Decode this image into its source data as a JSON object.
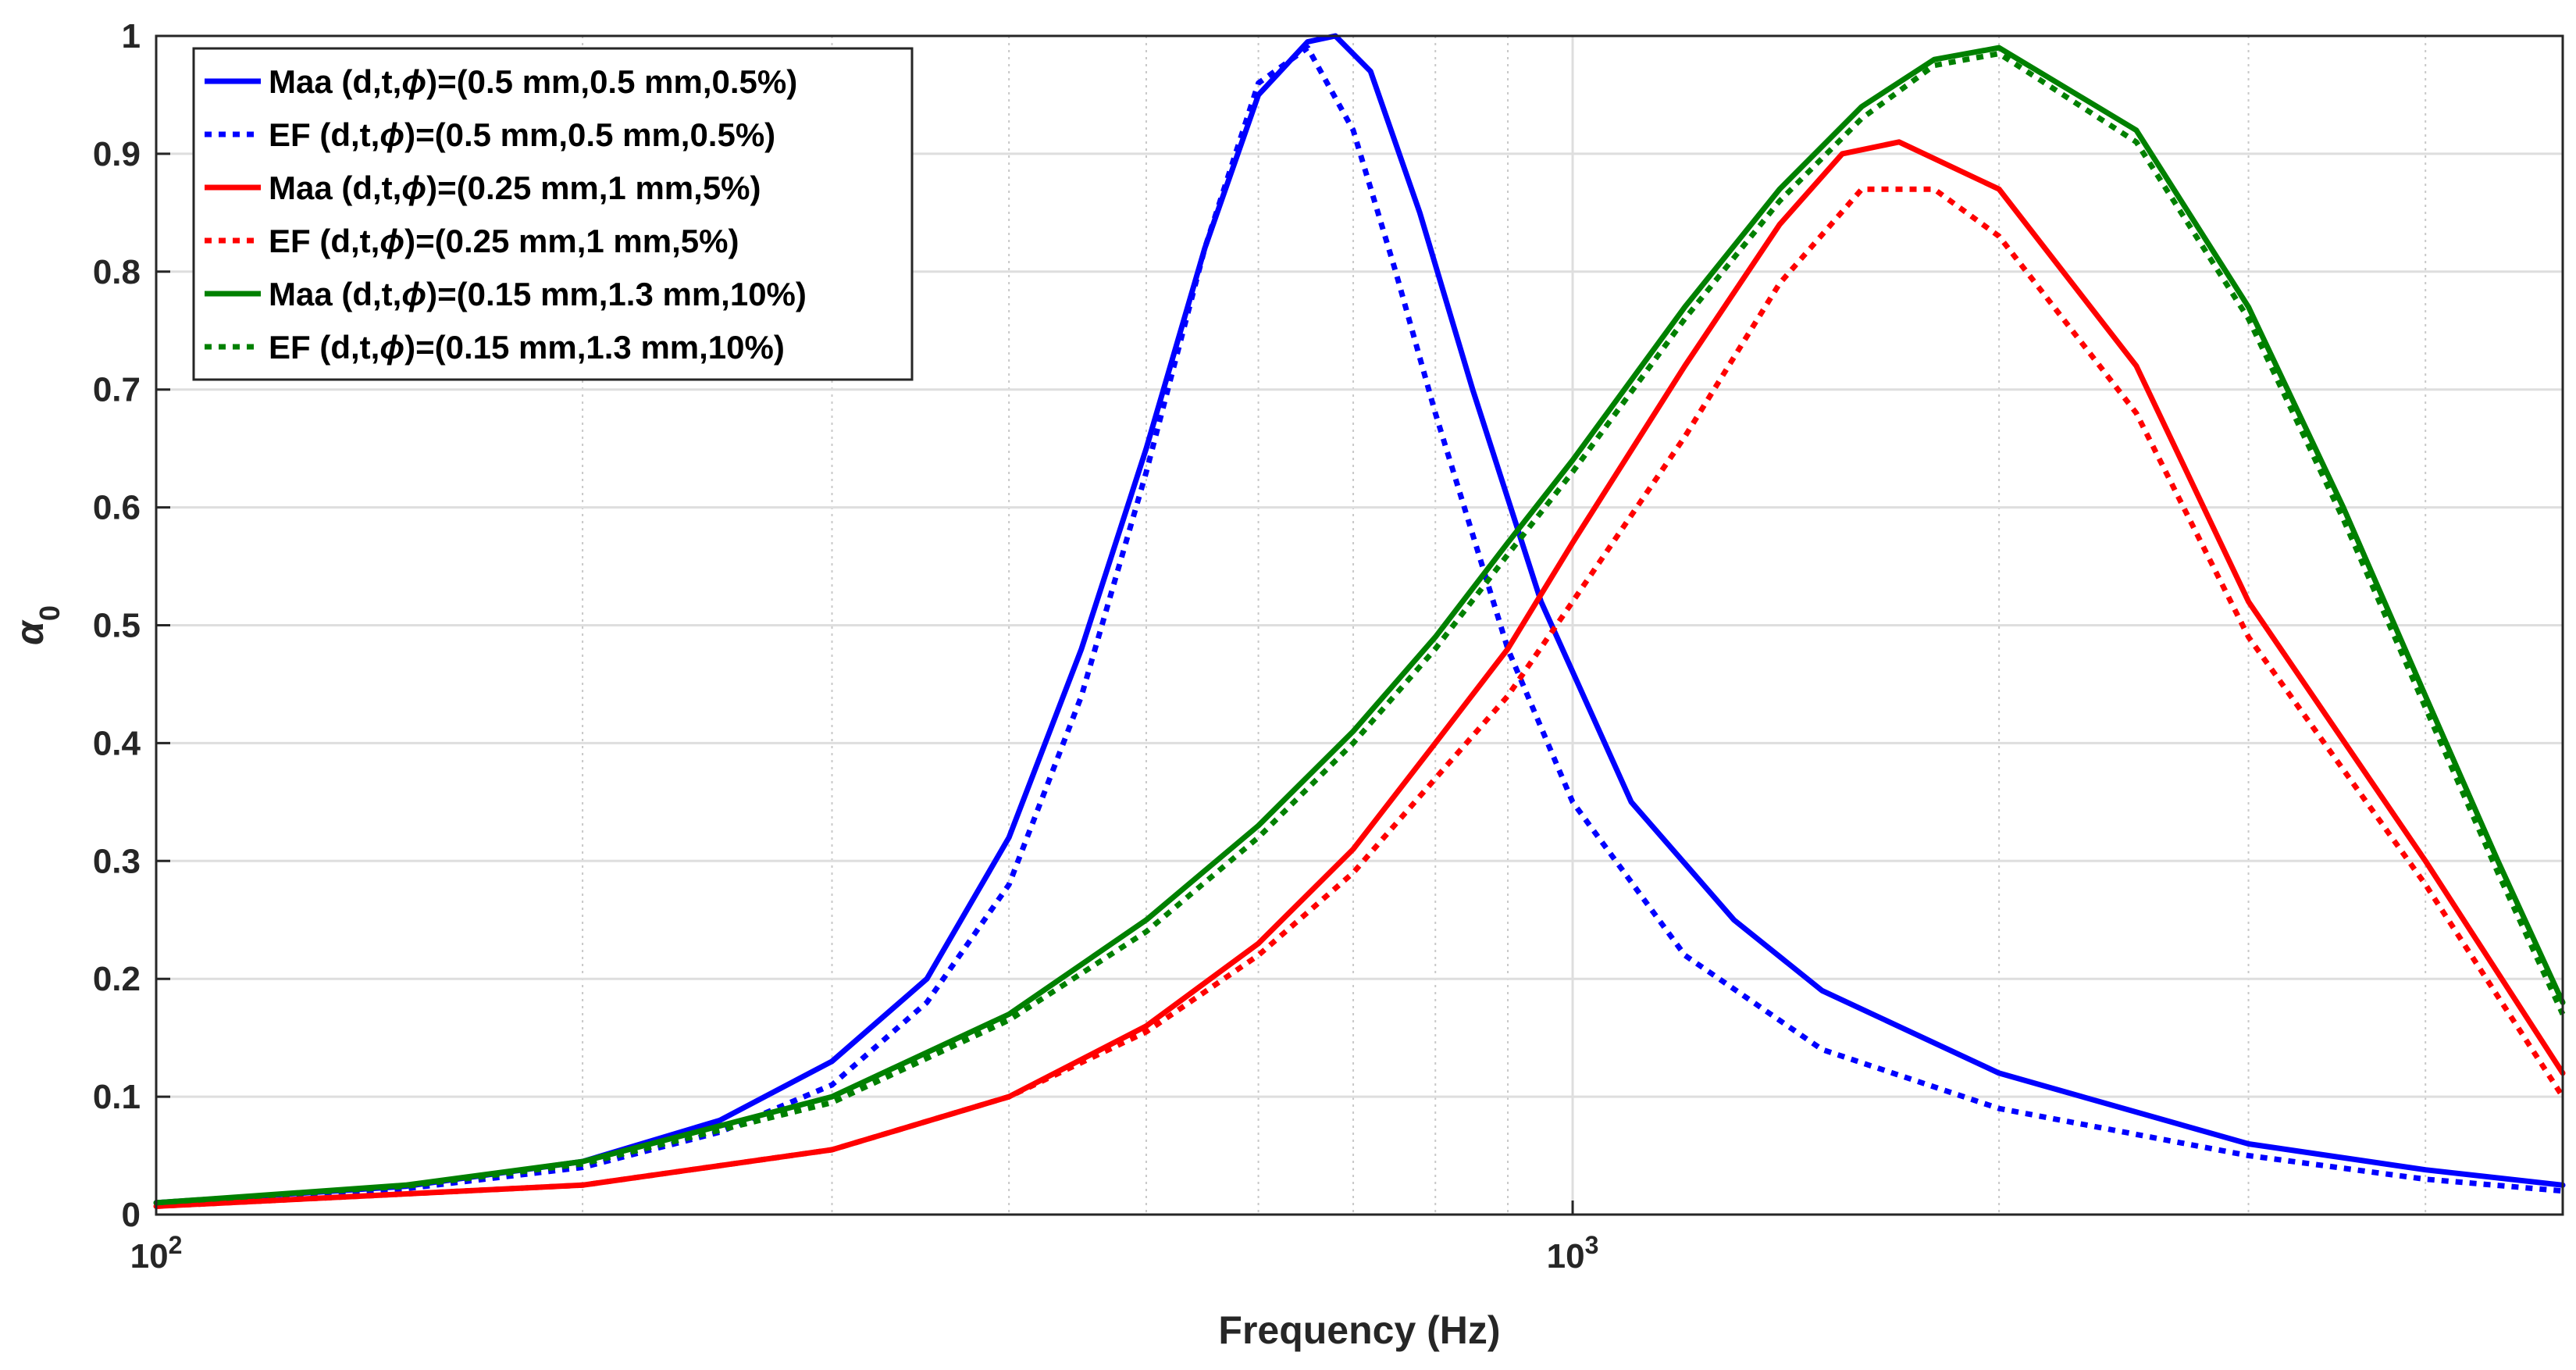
{
  "chart_data": {
    "type": "line",
    "xscale": "log",
    "xlabel": "Frequency (Hz)",
    "ylabel": "α",
    "ylabel_subscript": "0",
    "xlim": [
      100,
      5000
    ],
    "ylim": [
      0,
      1
    ],
    "yticks": [
      0,
      0.1,
      0.2,
      0.3,
      0.4,
      0.5,
      0.6,
      0.7,
      0.8,
      0.9,
      1
    ],
    "ytick_labels": [
      "0",
      "0.1",
      "0.2",
      "0.3",
      "0.4",
      "0.5",
      "0.6",
      "0.7",
      "0.8",
      "0.9",
      "1"
    ],
    "xticks": [
      100,
      1000
    ],
    "xtick_labels": [
      {
        "base": "10",
        "exp": "2"
      },
      {
        "base": "10",
        "exp": "3"
      }
    ],
    "grid": true,
    "minor_grid": true,
    "legend_position": "top-left",
    "series": [
      {
        "name": "Maa (d,t,ϕ)=(0.5 mm,0.5 mm,0.5%)",
        "legend_prefix": "Maa (d,t,",
        "legend_symbol": "ϕ",
        "legend_suffix": ")=(0.5 mm,0.5 mm,0.5%)",
        "color": "#0000ff",
        "style": "solid",
        "x": [
          100,
          150,
          200,
          250,
          300,
          350,
          400,
          450,
          500,
          550,
          600,
          650,
          680,
          720,
          780,
          850,
          950,
          1100,
          1300,
          1500,
          2000,
          3000,
          4000,
          5000
        ],
        "y": [
          0.01,
          0.024,
          0.045,
          0.08,
          0.13,
          0.2,
          0.32,
          0.48,
          0.65,
          0.82,
          0.95,
          0.995,
          1.0,
          0.97,
          0.85,
          0.7,
          0.52,
          0.35,
          0.25,
          0.19,
          0.12,
          0.06,
          0.038,
          0.025
        ]
      },
      {
        "name": "EF (d,t,ϕ)=(0.5 mm,0.5 mm,0.5%)",
        "legend_prefix": "EF (d,t,",
        "legend_symbol": "ϕ",
        "legend_suffix": ")=(0.5 mm,0.5 mm,0.5%)",
        "color": "#0000ff",
        "style": "dotted",
        "x": [
          100,
          150,
          200,
          250,
          300,
          350,
          400,
          450,
          500,
          550,
          600,
          650,
          700,
          750,
          800,
          900,
          1000,
          1200,
          1500,
          2000,
          3000,
          4000,
          5000
        ],
        "y": [
          0.009,
          0.022,
          0.04,
          0.07,
          0.11,
          0.18,
          0.28,
          0.44,
          0.63,
          0.82,
          0.96,
          0.99,
          0.92,
          0.8,
          0.68,
          0.48,
          0.35,
          0.22,
          0.14,
          0.09,
          0.05,
          0.03,
          0.02
        ]
      },
      {
        "name": "Maa (d,t,ϕ)=(0.25 mm,1 mm,5%)",
        "legend_prefix": "Maa (d,t,",
        "legend_symbol": "ϕ",
        "legend_suffix": ")=(0.25 mm,1 mm,5%)",
        "color": "#ff0000",
        "style": "solid",
        "x": [
          100,
          200,
          300,
          400,
          500,
          600,
          700,
          800,
          900,
          1000,
          1200,
          1400,
          1550,
          1700,
          2000,
          2500,
          3000,
          4000,
          5000
        ],
        "y": [
          0.007,
          0.025,
          0.055,
          0.1,
          0.16,
          0.23,
          0.31,
          0.4,
          0.48,
          0.57,
          0.72,
          0.84,
          0.9,
          0.91,
          0.87,
          0.72,
          0.52,
          0.3,
          0.12
        ]
      },
      {
        "name": "EF (d,t,ϕ)=(0.25 mm,1 mm,5%)",
        "legend_prefix": "EF (d,t,",
        "legend_symbol": "ϕ",
        "legend_suffix": ")=(0.25 mm,1 mm,5%)",
        "color": "#ff0000",
        "style": "dotted",
        "x": [
          100,
          200,
          300,
          400,
          500,
          600,
          700,
          800,
          900,
          1000,
          1200,
          1400,
          1600,
          1800,
          2000,
          2500,
          3000,
          4000,
          5000
        ],
        "y": [
          0.007,
          0.025,
          0.055,
          0.1,
          0.155,
          0.22,
          0.29,
          0.37,
          0.44,
          0.52,
          0.66,
          0.79,
          0.87,
          0.87,
          0.83,
          0.68,
          0.49,
          0.28,
          0.1
        ]
      },
      {
        "name": "Maa (d,t,ϕ)=(0.15 mm,1.3 mm,10%)",
        "legend_prefix": "Maa (d,t,",
        "legend_symbol": "ϕ",
        "legend_suffix": ")=(0.15 mm,1.3 mm,10%)",
        "color": "#008000",
        "style": "solid",
        "x": [
          100,
          150,
          200,
          300,
          400,
          500,
          600,
          700,
          800,
          900,
          1000,
          1200,
          1400,
          1600,
          1800,
          2000,
          2500,
          3000,
          3500,
          4000,
          4500,
          5000
        ],
        "y": [
          0.01,
          0.025,
          0.045,
          0.1,
          0.17,
          0.25,
          0.33,
          0.41,
          0.49,
          0.57,
          0.64,
          0.77,
          0.87,
          0.94,
          0.98,
          0.99,
          0.92,
          0.77,
          0.6,
          0.44,
          0.3,
          0.18
        ]
      },
      {
        "name": "EF (d,t,ϕ)=(0.15 mm,1.3 mm,10%)",
        "legend_prefix": "EF (d,t,",
        "legend_symbol": "ϕ",
        "legend_suffix": ")=(0.15 mm,1.3 mm,10%)",
        "color": "#008000",
        "style": "dotted",
        "x": [
          100,
          150,
          200,
          300,
          400,
          500,
          600,
          700,
          800,
          900,
          1000,
          1200,
          1400,
          1600,
          1800,
          2000,
          2500,
          3000,
          3500,
          4000,
          4500,
          5000
        ],
        "y": [
          0.01,
          0.024,
          0.043,
          0.095,
          0.165,
          0.24,
          0.32,
          0.4,
          0.48,
          0.56,
          0.63,
          0.76,
          0.86,
          0.93,
          0.975,
          0.985,
          0.91,
          0.76,
          0.59,
          0.43,
          0.29,
          0.17
        ]
      }
    ]
  }
}
